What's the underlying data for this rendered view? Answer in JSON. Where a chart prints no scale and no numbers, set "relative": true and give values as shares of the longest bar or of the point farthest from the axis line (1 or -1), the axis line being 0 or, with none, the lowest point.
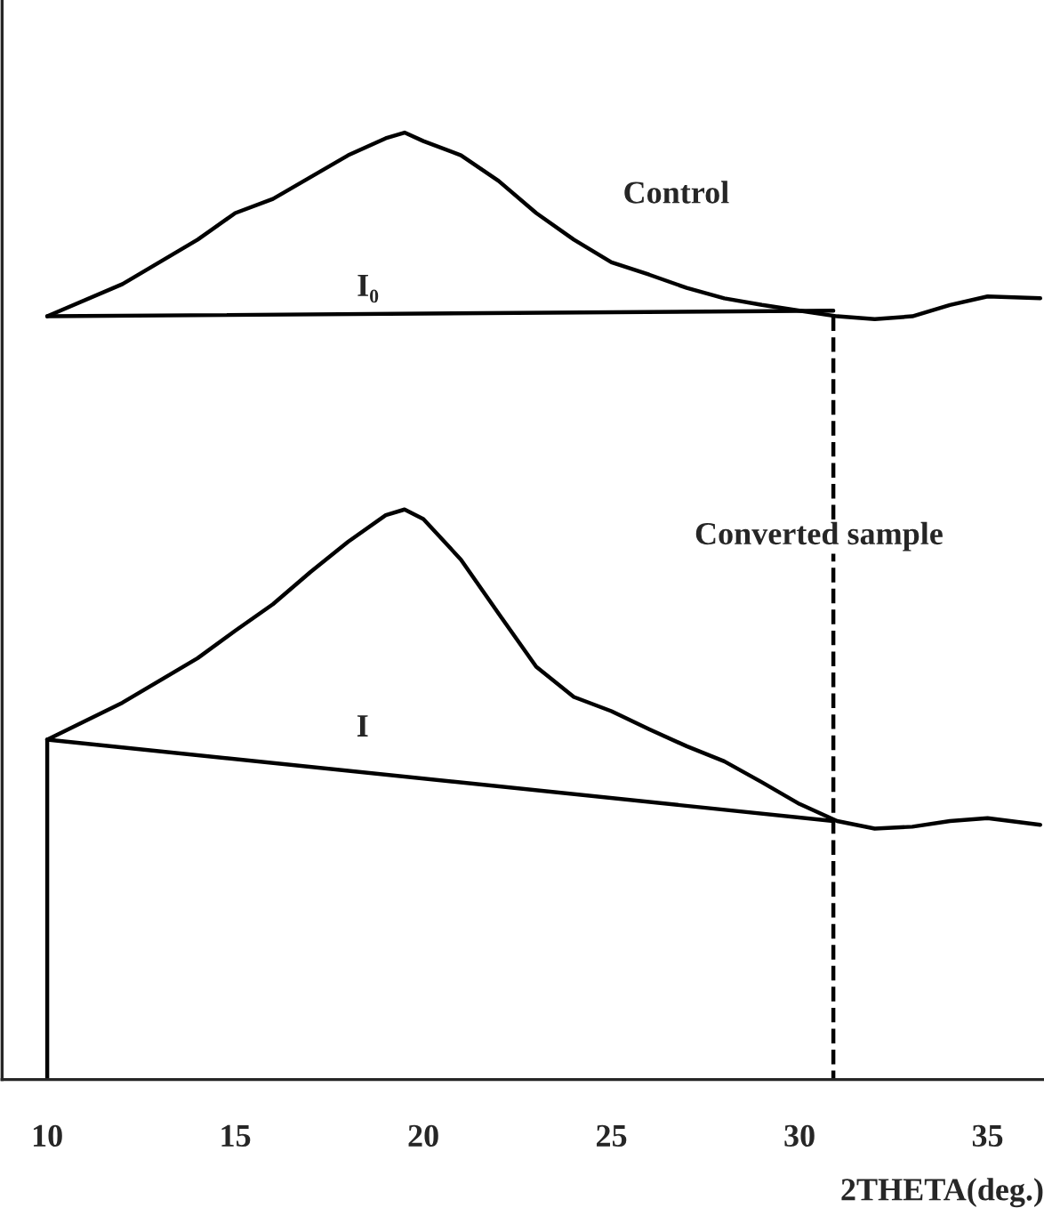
{
  "chart_data": {
    "type": "line",
    "relative": true,
    "xlabel": "2THETA(deg.)",
    "xlim": [
      8.8,
      36.5
    ],
    "xticks": [
      10,
      15,
      20,
      25,
      30,
      35
    ],
    "grid": false,
    "legend": false,
    "series": [
      {
        "color": "#000000",
        "x": [
          10,
          12,
          14,
          15,
          16,
          17,
          18,
          19,
          19.5,
          20,
          21,
          22,
          23,
          24,
          25,
          26,
          27,
          28,
          29,
          30,
          31,
          32,
          33,
          34,
          35,
          36.4
        ],
        "values": [
          0.806,
          0.84,
          0.887,
          0.915,
          0.93,
          0.953,
          0.976,
          0.994,
          1.0,
          0.991,
          0.976,
          0.949,
          0.915,
          0.887,
          0.863,
          0.85,
          0.836,
          0.825,
          0.818,
          0.812,
          0.806,
          0.803,
          0.806,
          0.818,
          0.827,
          0.825
        ]
      },
      {
        "color": "#000000",
        "x": [
          10,
          12,
          14,
          15,
          16,
          17,
          18,
          19,
          19.5,
          20,
          21,
          22,
          23,
          24,
          25,
          26,
          27,
          28,
          29,
          30,
          31,
          32,
          33,
          34,
          35,
          36.4
        ],
        "values": [
          0.359,
          0.398,
          0.445,
          0.474,
          0.502,
          0.536,
          0.568,
          0.596,
          0.602,
          0.592,
          0.549,
          0.492,
          0.436,
          0.404,
          0.389,
          0.37,
          0.352,
          0.336,
          0.314,
          0.291,
          0.273,
          0.265,
          0.267,
          0.273,
          0.276,
          0.269
        ]
      },
      {
        "color": "#000000",
        "x": [
          10,
          30.9
        ],
        "values": [
          0.806,
          0.812
        ]
      },
      {
        "color": "#000000",
        "x": [
          10,
          30.9
        ],
        "values": [
          0.359,
          0.273
        ]
      },
      {
        "color": "#000000",
        "x": [
          30.9,
          30.9
        ],
        "values": [
          0.806,
          0
        ],
        "line_style": "dashed"
      },
      {
        "color": "#000000",
        "x": [
          10,
          10
        ],
        "values": [
          0.359,
          0
        ]
      }
    ],
    "annotations": [
      "Control",
      "I₀",
      "Converted sample",
      "I"
    ]
  }
}
